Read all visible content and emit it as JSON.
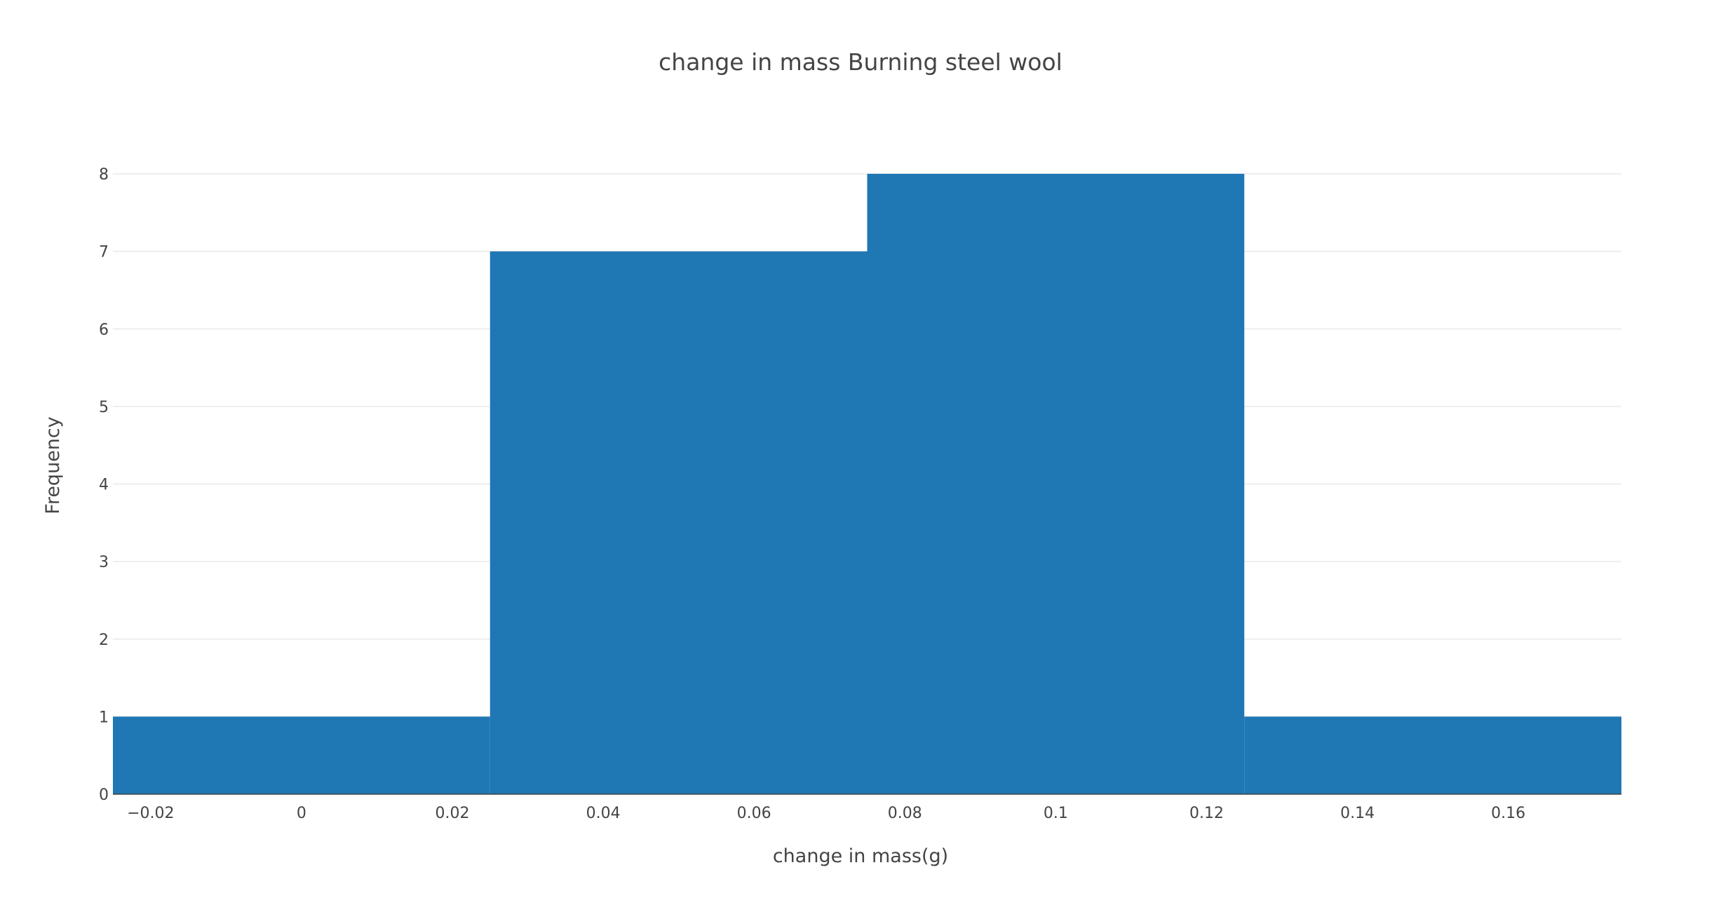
{
  "chart_data": {
    "type": "bar",
    "subtype": "histogram",
    "title": "change in mass Burning steel wool",
    "xlabel": "change in mass(g)",
    "ylabel": "Frequency",
    "xlim": [
      -0.025,
      0.175
    ],
    "ylim": [
      0,
      8
    ],
    "bin_size": 0.05,
    "bins": [
      {
        "start": -0.025,
        "end": 0.025,
        "count": 1
      },
      {
        "start": 0.025,
        "end": 0.075,
        "count": 7
      },
      {
        "start": 0.075,
        "end": 0.125,
        "count": 8
      },
      {
        "start": 0.125,
        "end": 0.175,
        "count": 1
      }
    ],
    "x_ticks": [
      {
        "value": -0.02,
        "label": "−0.02"
      },
      {
        "value": 0,
        "label": "0"
      },
      {
        "value": 0.02,
        "label": "0.02"
      },
      {
        "value": 0.04,
        "label": "0.04"
      },
      {
        "value": 0.06,
        "label": "0.06"
      },
      {
        "value": 0.08,
        "label": "0.08"
      },
      {
        "value": 0.1,
        "label": "0.1"
      },
      {
        "value": 0.12,
        "label": "0.12"
      },
      {
        "value": 0.14,
        "label": "0.14"
      },
      {
        "value": 0.16,
        "label": "0.16"
      }
    ],
    "y_ticks": [
      {
        "value": 0,
        "label": "0"
      },
      {
        "value": 1,
        "label": "1"
      },
      {
        "value": 2,
        "label": "2"
      },
      {
        "value": 3,
        "label": "3"
      },
      {
        "value": 4,
        "label": "4"
      },
      {
        "value": 5,
        "label": "5"
      },
      {
        "value": 6,
        "label": "6"
      },
      {
        "value": 7,
        "label": "7"
      },
      {
        "value": 8,
        "label": "8"
      }
    ],
    "grid": "horizontal",
    "legend": "none",
    "bar_color": "#1f77b4",
    "grid_color": "#e9e9e9",
    "text_color": "#444444"
  }
}
